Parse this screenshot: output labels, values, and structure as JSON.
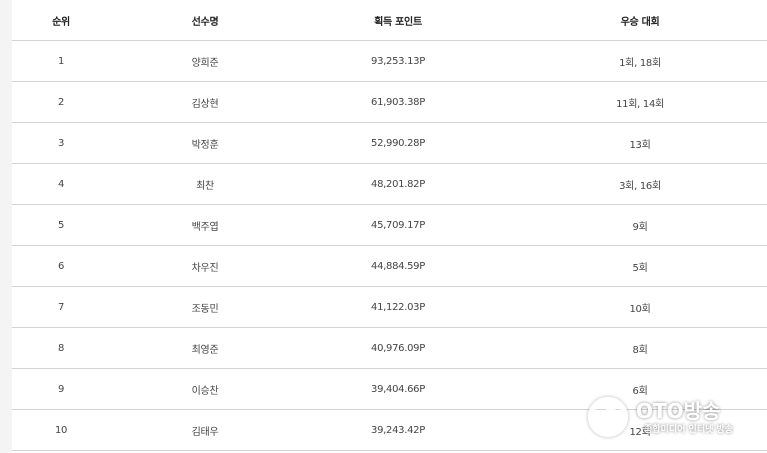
{
  "table": {
    "headers": [
      "순위",
      "선수명",
      "획득 포인트",
      "우승 대회"
    ],
    "rows": [
      {
        "rank": "1",
        "name": "양희준",
        "points": "93,253.13P",
        "wins": "1회, 18회"
      },
      {
        "rank": "2",
        "name": "김상현",
        "points": "61,903.38P",
        "wins": "11회, 14회"
      },
      {
        "rank": "3",
        "name": "박정훈",
        "points": "52,990.28P",
        "wins": "13회"
      },
      {
        "rank": "4",
        "name": "최찬",
        "points": "48,201.82P",
        "wins": "3회, 16회"
      },
      {
        "rank": "5",
        "name": "백주엽",
        "points": "45,709.17P",
        "wins": "9회"
      },
      {
        "rank": "6",
        "name": "차우진",
        "points": "44,884.59P",
        "wins": "5회"
      },
      {
        "rank": "7",
        "name": "조동민",
        "points": "41,122.03P",
        "wins": "10회"
      },
      {
        "rank": "8",
        "name": "최영준",
        "points": "40,976.09P",
        "wins": "8회"
      },
      {
        "rank": "9",
        "name": "이승찬",
        "points": "39,404.66P",
        "wins": "6회"
      },
      {
        "rank": "10",
        "name": "김태우",
        "points": "39,243.42P",
        "wins": "12회"
      }
    ]
  },
  "watermark": {
    "title": "OTO방송",
    "subtitle": "종합미디어 인터넷 방송"
  }
}
